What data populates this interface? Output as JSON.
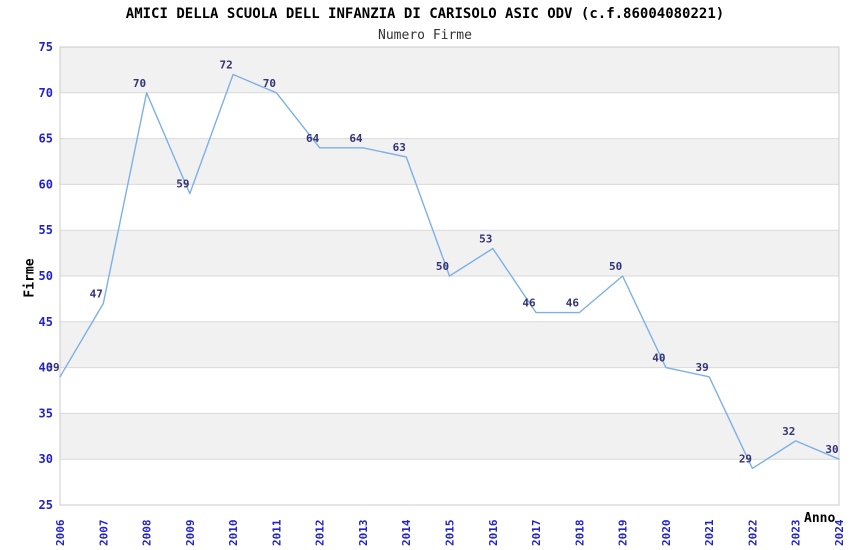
{
  "chart_data": {
    "type": "line",
    "title": "AMICI DELLA SCUOLA DELL INFANZIA DI CARISOLO ASIC ODV (c.f.86004080221)",
    "subtitle": "Numero Firme",
    "xlabel": "Anno",
    "ylabel": "Firme",
    "categories": [
      "2006",
      "2007",
      "2008",
      "2009",
      "2010",
      "2011",
      "2012",
      "2013",
      "2014",
      "2015",
      "2016",
      "2017",
      "2018",
      "2019",
      "2020",
      "2021",
      "2022",
      "2023",
      "2024"
    ],
    "values": [
      39,
      47,
      70,
      59,
      72,
      70,
      64,
      64,
      63,
      50,
      53,
      46,
      46,
      50,
      40,
      39,
      29,
      32,
      30
    ],
    "ylim": [
      25,
      75
    ],
    "ytick_step": 5,
    "grid": "horizontal-bands-alternating",
    "legend": "none",
    "colors": {
      "line": "#7db0e8",
      "tick_label": "#2222cc",
      "value_label": "#333377",
      "band_gray": "#f1f1f1",
      "band_white": "#ffffff",
      "grid_line": "#d9d9d9",
      "border": "#cccccc",
      "title": "#000000",
      "subtitle": "#333333"
    }
  }
}
